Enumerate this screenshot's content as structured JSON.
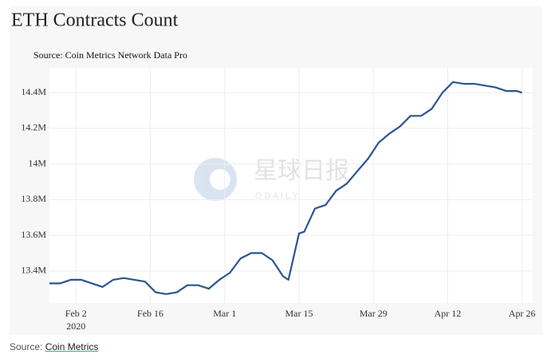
{
  "chart_data": {
    "type": "line",
    "title": "ETH Contracts Count",
    "subtitle": "Source: Coin Metrics Network Data Pro",
    "watermark": "星球日报",
    "watermark_sub": "O D A I L Y",
    "x": [
      "2020-01-28",
      "2020-01-30",
      "2020-02-01",
      "2020-02-03",
      "2020-02-05",
      "2020-02-07",
      "2020-02-09",
      "2020-02-11",
      "2020-02-13",
      "2020-02-15",
      "2020-02-17",
      "2020-02-19",
      "2020-02-21",
      "2020-02-23",
      "2020-02-25",
      "2020-02-27",
      "2020-02-29",
      "2020-03-02",
      "2020-03-04",
      "2020-03-06",
      "2020-03-08",
      "2020-03-10",
      "2020-03-12",
      "2020-03-13",
      "2020-03-15",
      "2020-03-16",
      "2020-03-18",
      "2020-03-20",
      "2020-03-22",
      "2020-03-24",
      "2020-03-26",
      "2020-03-28",
      "2020-03-30",
      "2020-04-01",
      "2020-04-03",
      "2020-04-05",
      "2020-04-07",
      "2020-04-09",
      "2020-04-11",
      "2020-04-13",
      "2020-04-15",
      "2020-04-17",
      "2020-04-19",
      "2020-04-21",
      "2020-04-23",
      "2020-04-25",
      "2020-04-26"
    ],
    "series": [
      {
        "name": "Contracts",
        "color": "#2a5592",
        "values": [
          13.33,
          13.33,
          13.35,
          13.35,
          13.33,
          13.31,
          13.35,
          13.36,
          13.35,
          13.34,
          13.28,
          13.27,
          13.28,
          13.32,
          13.32,
          13.3,
          13.35,
          13.39,
          13.47,
          13.5,
          13.5,
          13.46,
          13.37,
          13.35,
          13.61,
          13.62,
          13.75,
          13.77,
          13.85,
          13.89,
          13.96,
          14.03,
          14.12,
          14.17,
          14.21,
          14.27,
          14.27,
          14.31,
          14.4,
          14.46,
          14.45,
          14.45,
          14.44,
          14.43,
          14.41,
          14.41,
          14.4
        ]
      }
    ],
    "xlim": [
      "2020-01-28",
      "2020-04-28"
    ],
    "xticks": [
      {
        "value": "2020-02-02",
        "label": "Feb 2"
      },
      {
        "value": "2020-02-16",
        "label": "Feb 16"
      },
      {
        "value": "2020-03-01",
        "label": "Mar 1"
      },
      {
        "value": "2020-03-15",
        "label": "Mar 15"
      },
      {
        "value": "2020-03-29",
        "label": "Mar 29"
      },
      {
        "value": "2020-04-12",
        "label": "Apr 12"
      },
      {
        "value": "2020-04-26",
        "label": "Apr 26"
      }
    ],
    "x_year_label": "2020",
    "ylim": [
      13.22,
      14.54
    ],
    "yticks": [
      {
        "value": 13.4,
        "label": "13.4M"
      },
      {
        "value": 13.6,
        "label": "13.6M"
      },
      {
        "value": 13.8,
        "label": "13.8M"
      },
      {
        "value": 14,
        "label": "14M"
      },
      {
        "value": 14.2,
        "label": "14.2M"
      },
      {
        "value": 14.4,
        "label": "14.4M"
      }
    ],
    "grid": true
  },
  "footer": {
    "prefix": "Source:",
    "link": "Coin Metrics"
  }
}
